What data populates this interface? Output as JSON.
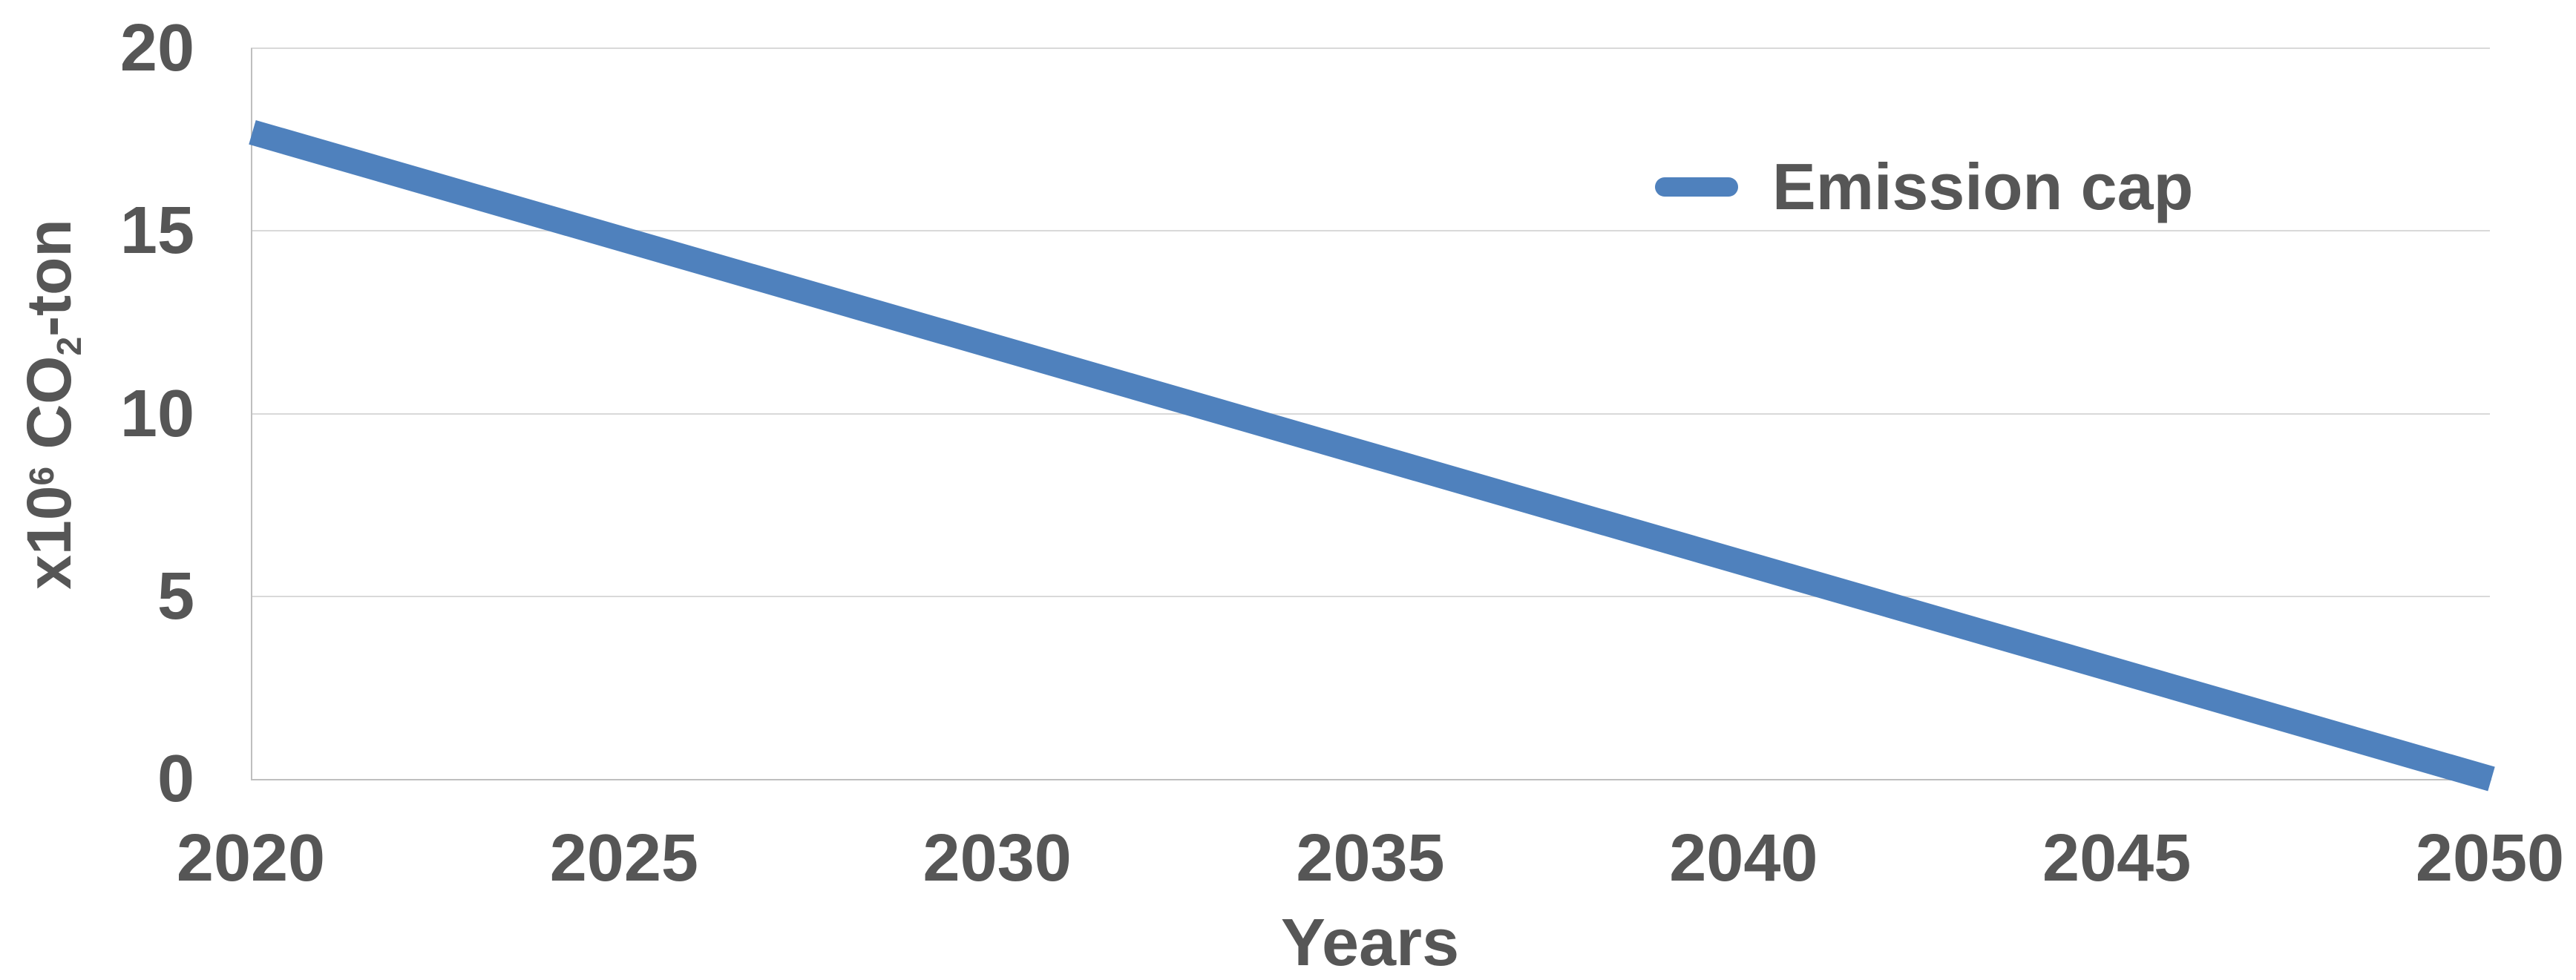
{
  "chart_data": {
    "type": "line",
    "categories": [
      "2020",
      "2025",
      "2030",
      "2035",
      "2040",
      "2045",
      "2050"
    ],
    "series": [
      {
        "name": "Emission cap",
        "values": [
          17.7,
          14.75,
          11.8,
          8.85,
          5.9,
          2.95,
          0
        ],
        "color": "#4F81BD",
        "stroke_width": 34
      }
    ],
    "title": "",
    "xlabel": "Years",
    "ylabel": "x10⁶ CO₂-ton",
    "ylim": [
      0,
      20
    ],
    "yticks": [
      0,
      5,
      10,
      15,
      20
    ],
    "grid": "horizontal",
    "legend_position": "inside-top-right"
  },
  "x_axis": {
    "title": "Years"
  },
  "y_axis": {
    "title_parts": {
      "prefix": "x10",
      "superscript": "6",
      "mid": " CO",
      "subscript": "2",
      "suffix": "-ton"
    }
  },
  "legend": {
    "label": "Emission cap"
  },
  "colors": {
    "line": "#4F81BD",
    "text": "#565656",
    "gridline": "#D9D9D9",
    "axis_line": "#BFBFBF",
    "background": "#FFFFFF"
  }
}
